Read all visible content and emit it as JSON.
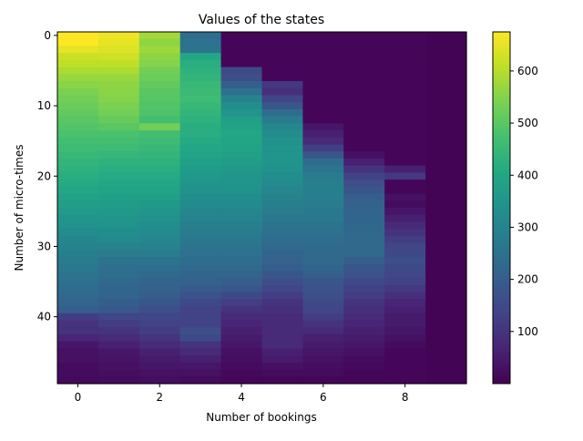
{
  "chart_data": {
    "type": "heatmap",
    "title": "Values of the states",
    "xlabel": "Number of bookings",
    "ylabel": "Number of micro-times",
    "x_ticks": [
      0,
      2,
      4,
      6,
      8
    ],
    "y_ticks": [
      0,
      10,
      20,
      30,
      40
    ],
    "colorbar_ticks": [
      100,
      200,
      300,
      400,
      500,
      600
    ],
    "colormap": "viridis",
    "value_range": [
      0,
      675
    ],
    "n_cols": 10,
    "n_rows": 50,
    "x_extent": [
      -0.5,
      9.5
    ],
    "y_extent": [
      -0.5,
      49.5
    ],
    "columns": [
      {
        "x": 0,
        "values": [
          675,
          675,
          650,
          620,
          610,
          590,
          570,
          555,
          540,
          530,
          520,
          510,
          500,
          490,
          480,
          470,
          460,
          450,
          440,
          430,
          420,
          410,
          400,
          385,
          375,
          365,
          350,
          340,
          325,
          310,
          300,
          290,
          280,
          270,
          260,
          250,
          240,
          230,
          220,
          200,
          120,
          100,
          100,
          70,
          40,
          30,
          30,
          20,
          20,
          15
        ]
      },
      {
        "x": 1,
        "values": [
          660,
          650,
          640,
          625,
          610,
          590,
          570,
          560,
          555,
          550,
          540,
          530,
          515,
          500,
          480,
          470,
          460,
          445,
          430,
          420,
          410,
          400,
          390,
          380,
          370,
          360,
          350,
          340,
          330,
          320,
          300,
          280,
          260,
          245,
          240,
          230,
          220,
          215,
          200,
          185,
          140,
          120,
          100,
          80,
          60,
          40,
          35,
          30,
          25,
          20
        ]
      },
      {
        "x": 2,
        "values": [
          580,
          560,
          575,
          560,
          550,
          530,
          520,
          510,
          500,
          495,
          490,
          485,
          470,
          530,
          470,
          460,
          450,
          440,
          430,
          420,
          410,
          400,
          390,
          380,
          360,
          350,
          340,
          330,
          320,
          310,
          300,
          280,
          260,
          245,
          230,
          220,
          210,
          200,
          180,
          160,
          140,
          130,
          120,
          100,
          80,
          60,
          50,
          40,
          30,
          25
        ]
      },
      {
        "x": 3,
        "values": [
          240,
          250,
          260,
          400,
          420,
          430,
          440,
          450,
          455,
          460,
          450,
          440,
          430,
          420,
          420,
          410,
          400,
          390,
          380,
          370,
          360,
          350,
          340,
          330,
          320,
          310,
          300,
          290,
          280,
          270,
          260,
          250,
          240,
          230,
          220,
          210,
          190,
          170,
          150,
          130,
          130,
          130,
          160,
          150,
          100,
          80,
          60,
          40,
          30,
          20
        ]
      },
      {
        "x": 4,
        "values": [
          10,
          10,
          10,
          10,
          10,
          150,
          160,
          200,
          250,
          300,
          330,
          350,
          380,
          390,
          400,
          395,
          390,
          380,
          370,
          360,
          350,
          345,
          340,
          330,
          320,
          310,
          300,
          290,
          280,
          270,
          260,
          250,
          240,
          230,
          220,
          200,
          180,
          150,
          120,
          100,
          80,
          70,
          60,
          50,
          40,
          30,
          25,
          20,
          15,
          10
        ]
      },
      {
        "x": 5,
        "values": [
          10,
          10,
          10,
          10,
          10,
          10,
          10,
          110,
          90,
          140,
          180,
          240,
          280,
          310,
          330,
          340,
          345,
          350,
          350,
          340,
          330,
          320,
          310,
          300,
          290,
          280,
          270,
          260,
          250,
          240,
          230,
          220,
          210,
          200,
          180,
          160,
          140,
          120,
          100,
          90,
          80,
          80,
          80,
          80,
          80,
          60,
          50,
          30,
          20,
          10
        ]
      },
      {
        "x": 6,
        "values": [
          10,
          10,
          10,
          10,
          10,
          10,
          10,
          10,
          10,
          10,
          10,
          10,
          10,
          40,
          60,
          80,
          120,
          180,
          240,
          260,
          280,
          290,
          290,
          290,
          280,
          270,
          270,
          260,
          250,
          240,
          230,
          230,
          230,
          220,
          200,
          180,
          170,
          160,
          150,
          140,
          120,
          100,
          80,
          60,
          50,
          40,
          30,
          25,
          20,
          10
        ]
      },
      {
        "x": 7,
        "values": [
          10,
          10,
          10,
          10,
          10,
          10,
          10,
          10,
          10,
          10,
          10,
          10,
          10,
          10,
          10,
          10,
          10,
          30,
          60,
          100,
          130,
          160,
          180,
          200,
          210,
          215,
          220,
          225,
          230,
          230,
          230,
          230,
          200,
          180,
          170,
          150,
          130,
          120,
          100,
          90,
          80,
          70,
          60,
          50,
          40,
          30,
          20,
          15,
          10,
          10
        ]
      },
      {
        "x": 8,
        "values": [
          10,
          10,
          10,
          10,
          10,
          10,
          10,
          10,
          10,
          10,
          10,
          10,
          10,
          10,
          10,
          10,
          10,
          10,
          10,
          60,
          110,
          10,
          10,
          30,
          20,
          40,
          60,
          80,
          100,
          120,
          140,
          150,
          160,
          150,
          140,
          130,
          110,
          90,
          70,
          60,
          50,
          50,
          40,
          30,
          20,
          10,
          10,
          10,
          10,
          10
        ]
      },
      {
        "x": 9,
        "values": [
          5,
          5,
          5,
          5,
          5,
          5,
          5,
          5,
          5,
          5,
          5,
          5,
          5,
          5,
          5,
          5,
          5,
          5,
          5,
          5,
          5,
          5,
          5,
          5,
          5,
          5,
          5,
          5,
          5,
          5,
          5,
          5,
          5,
          5,
          5,
          5,
          5,
          5,
          5,
          5,
          5,
          5,
          5,
          5,
          5,
          5,
          5,
          5,
          5,
          5
        ]
      }
    ]
  }
}
